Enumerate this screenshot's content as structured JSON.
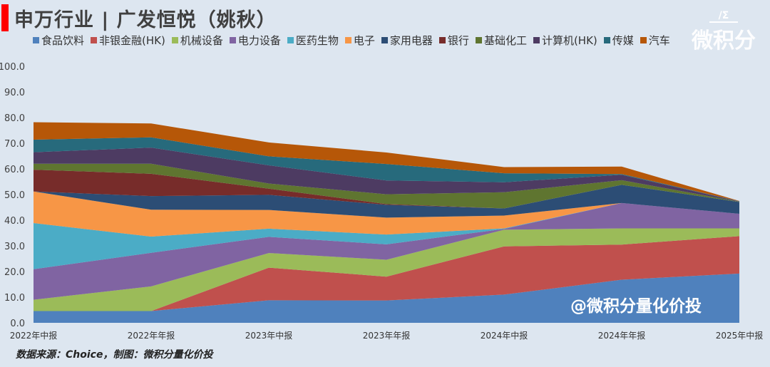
{
  "header": {
    "title": "申万行业 | 广发恒悦（姚秋）"
  },
  "logo": {
    "mark": "/Σ",
    "name": "微积分"
  },
  "footer": {
    "source": "数据来源：Choice，制图：微积分量化价投"
  },
  "watermark": "@微积分量化价投",
  "chart_data": {
    "type": "area",
    "stacked": true,
    "title": "申万行业 | 广发恒悦（姚秋）",
    "xlabel": "",
    "ylabel": "",
    "ylim": [
      0,
      100
    ],
    "yticks": [
      "0.0",
      "10.0",
      "20.0",
      "30.0",
      "40.0",
      "50.0",
      "60.0",
      "70.0",
      "80.0",
      "90.0",
      "100.0"
    ],
    "legend_position": "top",
    "grid": false,
    "categories": [
      "2022年中报",
      "2022年年报",
      "2023年中报",
      "2023年年报",
      "2024年中报",
      "2024年年报",
      "2025年中报"
    ],
    "series": [
      {
        "name": "食品饮料",
        "color": "#4f81bd",
        "values": [
          4.6,
          4.6,
          8.8,
          8.7,
          11.0,
          16.8,
          19.2
        ]
      },
      {
        "name": "非银金融(HK)",
        "color": "#c0504d",
        "values": [
          0,
          0,
          12.7,
          9.3,
          18.8,
          13.7,
          14.6
        ]
      },
      {
        "name": "机械设备",
        "color": "#9bbb59",
        "values": [
          4.4,
          9.6,
          5.7,
          6.6,
          6.5,
          6.3,
          3.0
        ]
      },
      {
        "name": "电力设备",
        "color": "#8064a2",
        "values": [
          11.9,
          13.1,
          6.3,
          6.0,
          0.3,
          9.9,
          5.7
        ]
      },
      {
        "name": "医药生物",
        "color": "#4bacc6",
        "values": [
          18.0,
          6.3,
          3.2,
          3.8,
          0.2,
          0,
          0
        ]
      },
      {
        "name": "电子",
        "color": "#f79646",
        "values": [
          12.3,
          10.5,
          7.3,
          6.6,
          5.0,
          0,
          0
        ]
      },
      {
        "name": "家用电器",
        "color": "#2c4d75",
        "values": [
          0,
          5.3,
          5.9,
          5.0,
          2.8,
          7.1,
          4.6
        ]
      },
      {
        "name": "银行",
        "color": "#772c2a",
        "values": [
          8.5,
          8.7,
          2.4,
          0.3,
          0,
          0,
          0
        ]
      },
      {
        "name": "基础化工",
        "color": "#5f7530",
        "values": [
          2.3,
          3.9,
          2.0,
          3.8,
          6.3,
          1.8,
          0.1
        ]
      },
      {
        "name": "计算机(HK)",
        "color": "#4d3b62",
        "values": [
          4.5,
          6.3,
          7.1,
          5.4,
          3.9,
          2.1,
          0.1
        ]
      },
      {
        "name": "传媒",
        "color": "#276a7c",
        "values": [
          4.9,
          4.0,
          3.5,
          6.4,
          3.5,
          0.3,
          0.1
        ]
      },
      {
        "name": "汽车",
        "color": "#b65708",
        "values": [
          6.8,
          5.4,
          5.4,
          4.5,
          2.4,
          2.9,
          0.1
        ]
      }
    ]
  }
}
